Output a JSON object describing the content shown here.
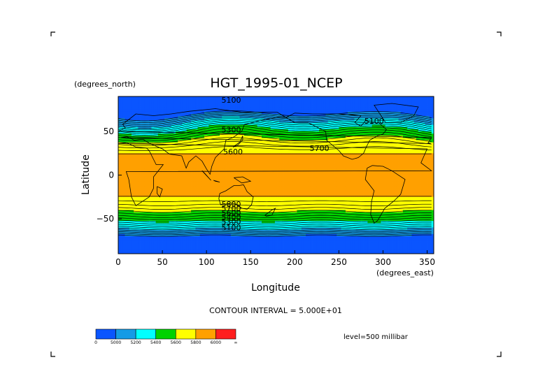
{
  "chart_data": {
    "type": "heatmap",
    "title": "HGT_1995-01_NCEP",
    "xlabel": "Longitude",
    "ylabel": "Latitude",
    "x_units": "(degrees_east)",
    "y_units": "(degrees_north)",
    "xlim": [
      0,
      357.5
    ],
    "ylim": [
      -90,
      90
    ],
    "x_ticks": [
      0,
      50,
      100,
      150,
      200,
      250,
      300,
      350
    ],
    "y_ticks": [
      50,
      0,
      -50
    ],
    "y_tick_labels": [
      "50",
      "0",
      "−50"
    ],
    "x_tick_labels": [
      "0",
      "50",
      "100",
      "150",
      "200",
      "250",
      "300",
      "350"
    ],
    "contour_interval_text": "CONTOUR INTERVAL = 5.000E+01",
    "level_text": "level=500 millibar",
    "levels": [
      5000,
      5200,
      5400,
      5600,
      5800,
      6000
    ],
    "colorbar": {
      "colors": [
        "#0a55ff",
        "#149be6",
        "#00ffff",
        "#00d200",
        "#ffff00",
        "#ffa000",
        "#ff1e1e"
      ],
      "labels": [
        "0",
        "5000",
        "5200",
        "5400",
        "5600",
        "5800",
        "6000",
        "∞"
      ]
    },
    "contour_labels": [
      {
        "text": "5100",
        "lon": 128,
        "lat": 86
      },
      {
        "text": "5100",
        "lon": 290,
        "lat": 62
      },
      {
        "text": "5300",
        "lon": 128,
        "lat": 52
      },
      {
        "text": "5600",
        "lon": 130,
        "lat": 27
      },
      {
        "text": "5700",
        "lon": 228,
        "lat": 31
      },
      {
        "text": "5800",
        "lon": 128,
        "lat": -33
      },
      {
        "text": "5700",
        "lon": 128,
        "lat": -38
      },
      {
        "text": "5600",
        "lon": 128,
        "lat": -43
      },
      {
        "text": "5400",
        "lon": 128,
        "lat": -48
      },
      {
        "text": "5300",
        "lon": 128,
        "lat": -53
      },
      {
        "text": "5100",
        "lon": 128,
        "lat": -60
      }
    ],
    "grid": false,
    "legend": "colorbar bottom-left"
  }
}
